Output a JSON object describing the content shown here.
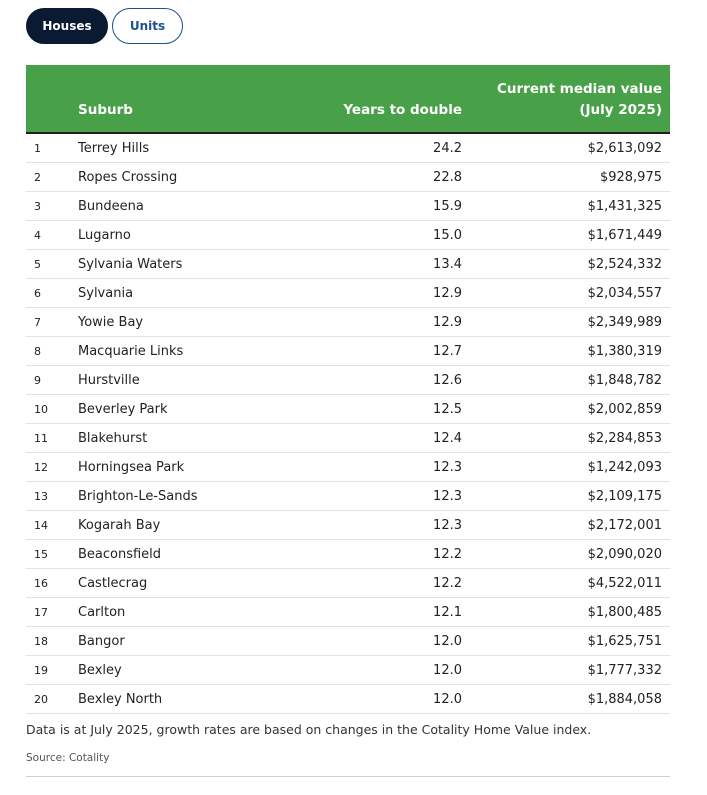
{
  "tabs": [
    {
      "label": "Houses",
      "active": true
    },
    {
      "label": "Units",
      "active": false
    }
  ],
  "table": {
    "headers": {
      "suburb": "Suburb",
      "years": "Years to double",
      "value_line1": "Current median value",
      "value_line2": "(July 2025)"
    },
    "rows": [
      {
        "rank": "1",
        "suburb": "Terrey Hills",
        "years": "24.2",
        "value": "$2,613,092"
      },
      {
        "rank": "2",
        "suburb": "Ropes Crossing",
        "years": "22.8",
        "value": "$928,975"
      },
      {
        "rank": "3",
        "suburb": "Bundeena",
        "years": "15.9",
        "value": "$1,431,325"
      },
      {
        "rank": "4",
        "suburb": "Lugarno",
        "years": "15.0",
        "value": "$1,671,449"
      },
      {
        "rank": "5",
        "suburb": "Sylvania Waters",
        "years": "13.4",
        "value": "$2,524,332"
      },
      {
        "rank": "6",
        "suburb": "Sylvania",
        "years": "12.9",
        "value": "$2,034,557"
      },
      {
        "rank": "7",
        "suburb": "Yowie Bay",
        "years": "12.9",
        "value": "$2,349,989"
      },
      {
        "rank": "8",
        "suburb": "Macquarie Links",
        "years": "12.7",
        "value": "$1,380,319"
      },
      {
        "rank": "9",
        "suburb": "Hurstville",
        "years": "12.6",
        "value": "$1,848,782"
      },
      {
        "rank": "10",
        "suburb": "Beverley Park",
        "years": "12.5",
        "value": "$2,002,859"
      },
      {
        "rank": "11",
        "suburb": "Blakehurst",
        "years": "12.4",
        "value": "$2,284,853"
      },
      {
        "rank": "12",
        "suburb": "Horningsea Park",
        "years": "12.3",
        "value": "$1,242,093"
      },
      {
        "rank": "13",
        "suburb": "Brighton-Le-Sands",
        "years": "12.3",
        "value": "$2,109,175"
      },
      {
        "rank": "14",
        "suburb": "Kogarah Bay",
        "years": "12.3",
        "value": "$2,172,001"
      },
      {
        "rank": "15",
        "suburb": "Beaconsfield",
        "years": "12.2",
        "value": "$2,090,020"
      },
      {
        "rank": "16",
        "suburb": "Castlecrag",
        "years": "12.2",
        "value": "$4,522,011"
      },
      {
        "rank": "17",
        "suburb": "Carlton",
        "years": "12.1",
        "value": "$1,800,485"
      },
      {
        "rank": "18",
        "suburb": "Bangor",
        "years": "12.0",
        "value": "$1,625,751"
      },
      {
        "rank": "19",
        "suburb": "Bexley",
        "years": "12.0",
        "value": "$1,777,332"
      },
      {
        "rank": "20",
        "suburb": "Bexley North",
        "years": "12.0",
        "value": "$1,884,058"
      }
    ]
  },
  "footnote": "Data is at July 2025, growth rates are based on changes in the Cotality Home Value index.",
  "source": "Source: Cotality",
  "colors": {
    "header_bg": "#48a148",
    "active_tab_bg": "#0b1a33",
    "inactive_tab_border": "#1d4f91"
  }
}
